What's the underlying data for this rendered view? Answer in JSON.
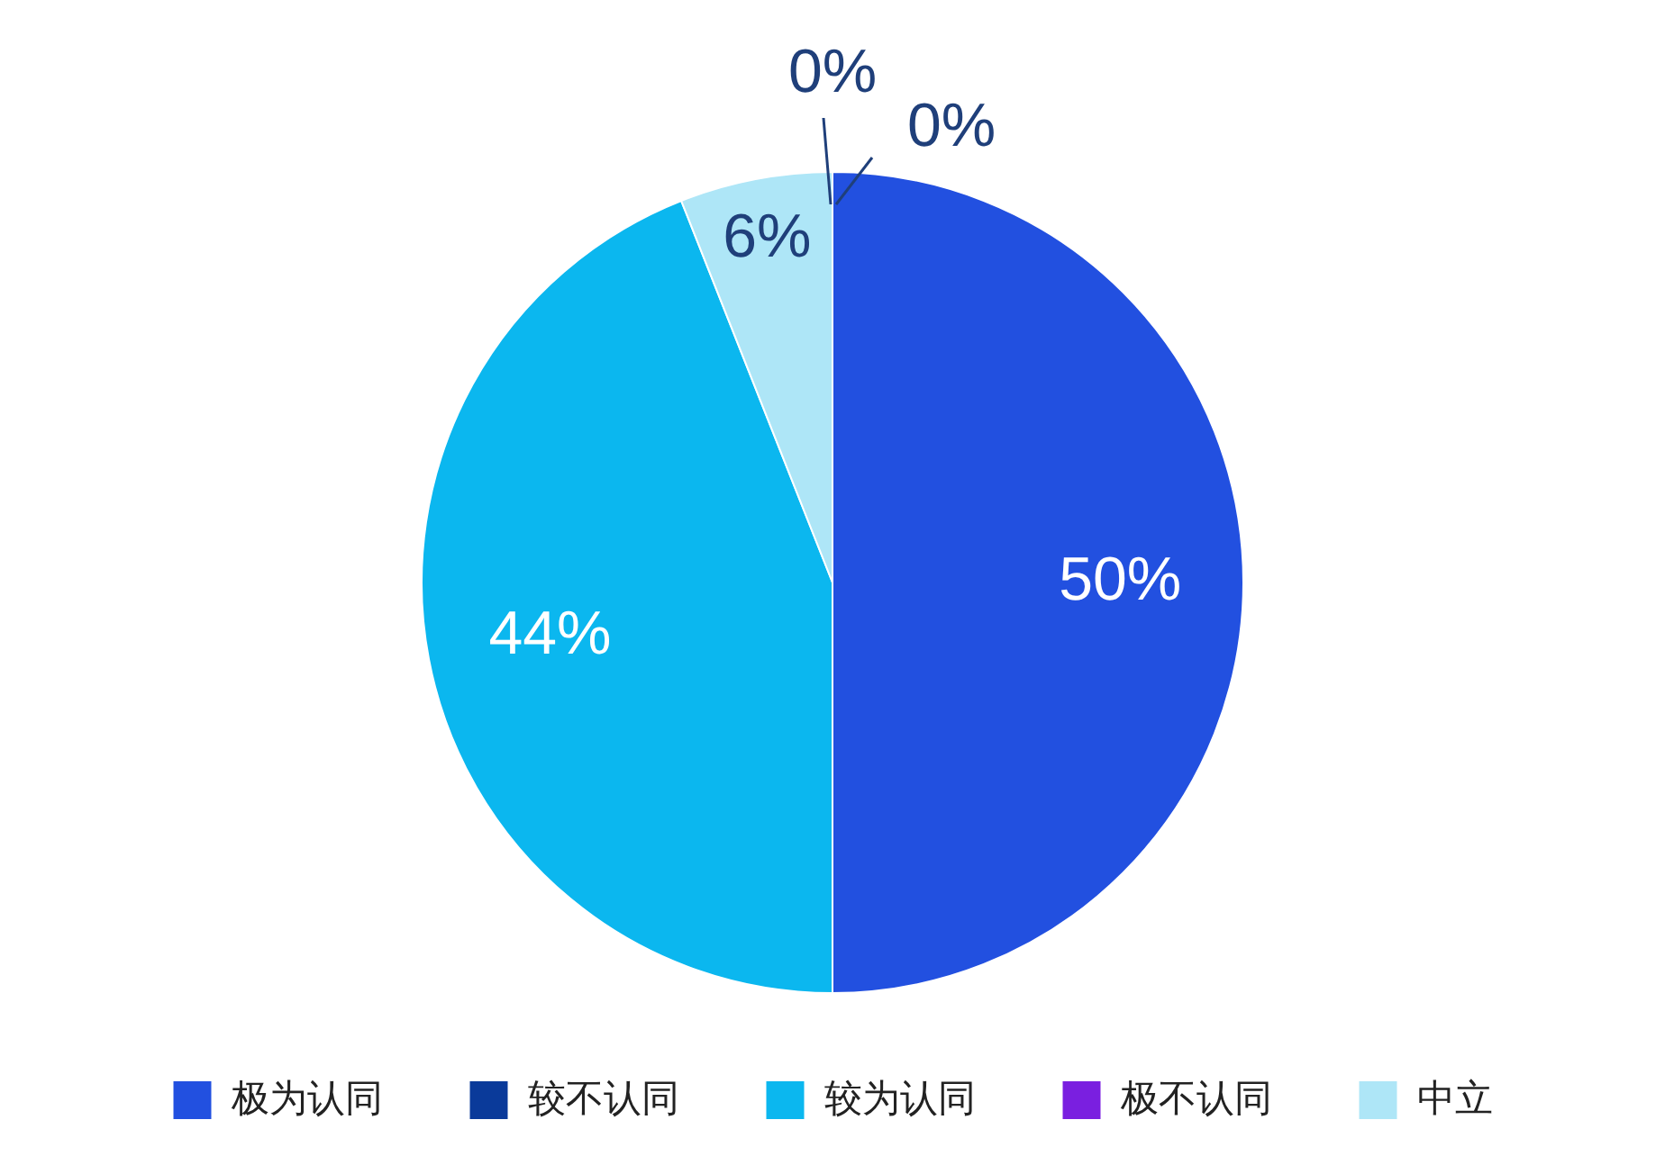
{
  "chart_data": {
    "type": "pie",
    "categories": [
      "极为认同",
      "较不认同",
      "较为认同",
      "极不认同",
      "中立"
    ],
    "values": [
      50,
      0,
      44,
      0,
      6
    ],
    "colors": [
      "#2250e0",
      "#0a3a9a",
      "#0bb7ef",
      "#7a1fe0",
      "#aee6f7"
    ],
    "value_labels": [
      "50%",
      "0%",
      "44%",
      "0%",
      "6%"
    ],
    "legend": "bottom"
  }
}
